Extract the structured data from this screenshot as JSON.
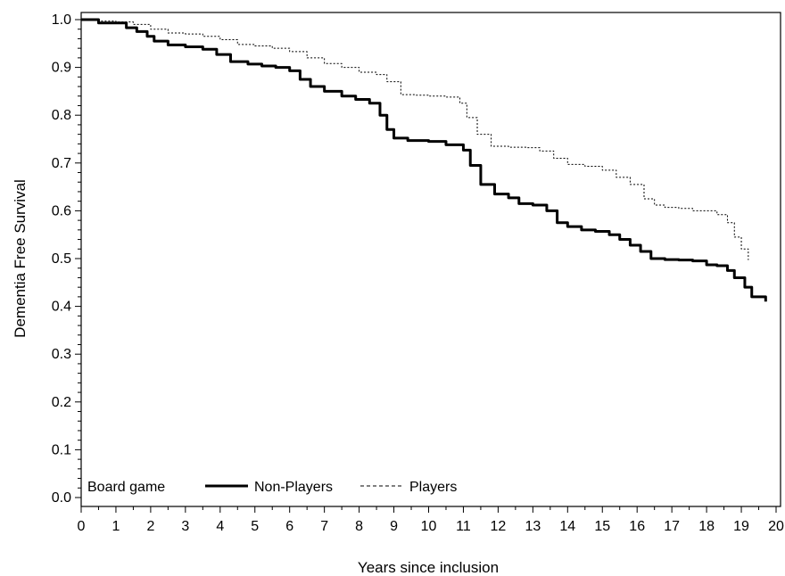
{
  "chart_data": {
    "type": "line",
    "xlabel": "Years since inclusion",
    "ylabel": "Dementia Free Survival",
    "xlim": [
      0,
      20
    ],
    "ylim": [
      0.0,
      1.0
    ],
    "x_ticks": [
      "0",
      "1",
      "2",
      "3",
      "4",
      "5",
      "6",
      "7",
      "8",
      "9",
      "10",
      "11",
      "12",
      "13",
      "14",
      "15",
      "16",
      "17",
      "18",
      "19",
      "20"
    ],
    "y_ticks": [
      "0.0",
      "0.1",
      "0.2",
      "0.3",
      "0.4",
      "0.5",
      "0.6",
      "0.7",
      "0.8",
      "0.9",
      "1.0"
    ],
    "grid": false,
    "legend": {
      "title": "Board game",
      "placement": "bottom-left"
    },
    "series": [
      {
        "name": "Non-Players",
        "style": "solid-thick",
        "color": "#000000",
        "x": [
          0,
          0.5,
          1.0,
          1.3,
          1.6,
          1.9,
          2.1,
          2.5,
          3.0,
          3.5,
          3.9,
          4.3,
          4.8,
          5.2,
          5.6,
          6.0,
          6.3,
          6.6,
          7.0,
          7.5,
          7.9,
          8.3,
          8.6,
          8.8,
          9.0,
          9.4,
          10.0,
          10.5,
          11.0,
          11.2,
          11.5,
          11.9,
          12.3,
          12.6,
          13.0,
          13.4,
          13.7,
          14.0,
          14.4,
          14.8,
          15.2,
          15.5,
          15.8,
          16.1,
          16.4,
          16.8,
          17.2,
          17.6,
          18.0,
          18.3,
          18.6,
          18.8,
          19.1,
          19.3,
          19.7
        ],
        "y": [
          1.0,
          0.993,
          0.993,
          0.983,
          0.975,
          0.965,
          0.955,
          0.947,
          0.943,
          0.938,
          0.927,
          0.912,
          0.907,
          0.903,
          0.9,
          0.893,
          0.875,
          0.86,
          0.85,
          0.84,
          0.833,
          0.825,
          0.8,
          0.77,
          0.752,
          0.747,
          0.745,
          0.738,
          0.727,
          0.695,
          0.655,
          0.635,
          0.627,
          0.615,
          0.612,
          0.6,
          0.575,
          0.567,
          0.56,
          0.557,
          0.55,
          0.54,
          0.528,
          0.515,
          0.5,
          0.498,
          0.497,
          0.495,
          0.487,
          0.485,
          0.475,
          0.46,
          0.44,
          0.42,
          0.41
        ]
      },
      {
        "name": "Players",
        "style": "dashed-thin",
        "color": "#000000",
        "x": [
          0,
          0.5,
          1.0,
          1.5,
          2.0,
          2.5,
          3.0,
          3.5,
          4.0,
          4.5,
          5.0,
          5.5,
          6.0,
          6.5,
          7.0,
          7.5,
          8.0,
          8.5,
          8.8,
          9.2,
          9.6,
          10.0,
          10.5,
          10.9,
          11.1,
          11.4,
          11.8,
          12.3,
          12.8,
          13.2,
          13.6,
          14.0,
          14.5,
          15.0,
          15.4,
          15.8,
          16.2,
          16.5,
          16.8,
          17.2,
          17.6,
          18.0,
          18.3,
          18.6,
          18.8,
          19.0,
          19.2
        ],
        "y": [
          1.0,
          0.997,
          0.995,
          0.99,
          0.98,
          0.972,
          0.97,
          0.965,
          0.958,
          0.948,
          0.945,
          0.94,
          0.933,
          0.92,
          0.908,
          0.9,
          0.89,
          0.885,
          0.87,
          0.843,
          0.842,
          0.84,
          0.838,
          0.825,
          0.795,
          0.76,
          0.735,
          0.733,
          0.732,
          0.725,
          0.71,
          0.697,
          0.693,
          0.685,
          0.67,
          0.655,
          0.625,
          0.612,
          0.607,
          0.605,
          0.6,
          0.6,
          0.592,
          0.575,
          0.545,
          0.52,
          0.497
        ]
      }
    ]
  }
}
